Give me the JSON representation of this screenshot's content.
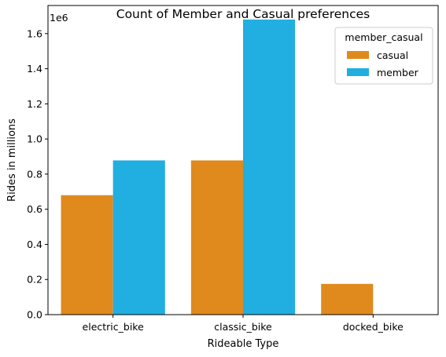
{
  "chart_data": {
    "type": "bar",
    "title": "Count of Member and Casual preferences",
    "xlabel": "Rideable Type",
    "ylabel": "Rides in millions",
    "offset_text": "1e6",
    "categories": [
      "electric_bike",
      "classic_bike",
      "docked_bike"
    ],
    "series": [
      {
        "name": "casual",
        "color": "#e08a1e",
        "values": [
          680000,
          878000,
          175000
        ]
      },
      {
        "name": "member",
        "color": "#21aee0",
        "values": [
          878000,
          1680000,
          0
        ]
      }
    ],
    "ylim": [
      0,
      1760000
    ],
    "yticks": [
      0,
      200000,
      400000,
      600000,
      800000,
      1000000,
      1200000,
      1400000,
      1600000
    ],
    "ytick_labels": [
      "0.0",
      "0.2",
      "0.4",
      "0.6",
      "0.8",
      "1.0",
      "1.2",
      "1.4",
      "1.6"
    ],
    "grid": false,
    "legend": {
      "title": "member_casual",
      "placement": "top-right"
    }
  }
}
